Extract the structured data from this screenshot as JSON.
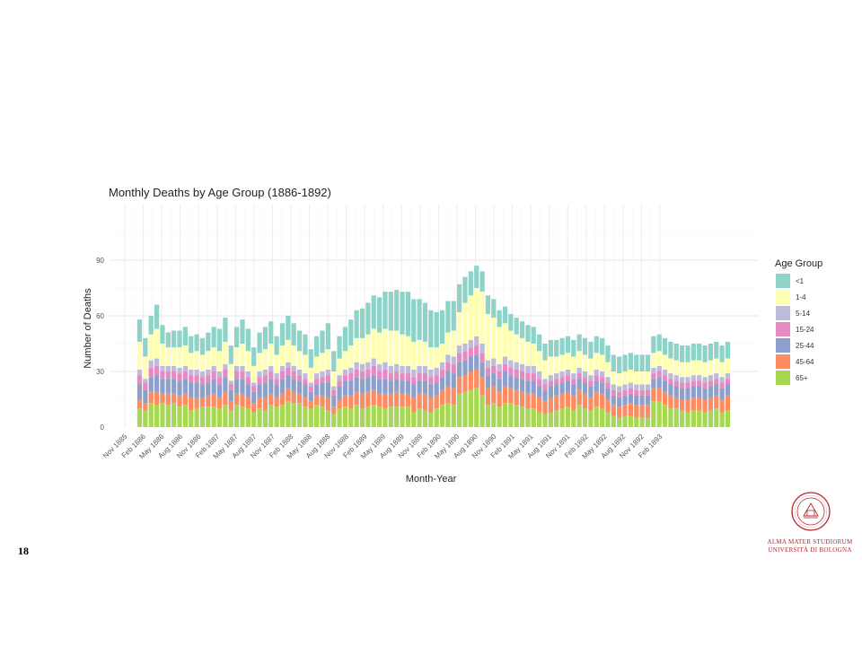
{
  "slide": {
    "number": "18"
  },
  "logo": {
    "line1": "ALMA MATER STUDIORUM",
    "line2": "UNIVERSITÀ DI BOLOGNA",
    "seal_text": "ALMA MATER STUDIORUM A.D. 1088",
    "color": "#b5272d"
  },
  "chart_data": {
    "type": "bar",
    "stacked": true,
    "title": "Monthly Deaths by Age Group (1886-1892)",
    "xlabel": "Month-Year",
    "ylabel": "Number of Deaths",
    "ylim": [
      0,
      120
    ],
    "y_ticks": [
      0,
      30,
      60,
      90
    ],
    "x_tick_labels": [
      "Nov 1885",
      "Feb 1886",
      "May 1886",
      "Aug 1886",
      "Nov 1886",
      "Feb 1887",
      "May 1887",
      "Aug 1887",
      "Nov 1887",
      "Feb 1888",
      "May 1888",
      "Aug 1888",
      "Nov 1888",
      "Feb 1889",
      "May 1889",
      "Aug 1889",
      "Nov 1889",
      "Feb 1890",
      "May 1890",
      "Aug 1890",
      "Nov 1890",
      "Feb 1891",
      "May 1891",
      "Aug 1891",
      "Nov 1891",
      "Feb 1892",
      "May 1892",
      "Aug 1892",
      "Nov 1892",
      "Feb 1893"
    ],
    "grid": true,
    "legend_position": "right",
    "legend_title": "Age Group",
    "series": [
      {
        "name": "65+",
        "color": "#a6d854",
        "values": [
          10,
          9,
          13,
          12,
          13,
          12,
          13,
          11,
          12,
          9,
          10,
          11,
          11,
          11,
          10,
          12,
          9,
          12,
          11,
          10,
          8,
          10,
          9,
          12,
          11,
          12,
          14,
          13,
          13,
          11,
          10,
          12,
          11,
          9,
          7,
          10,
          11,
          10,
          12,
          10,
          11,
          12,
          11,
          10,
          11,
          11,
          11,
          11,
          8,
          10,
          9,
          8,
          10,
          12,
          13,
          12,
          18,
          19,
          20,
          21,
          17,
          12,
          13,
          11,
          13,
          13,
          12,
          11,
          10,
          10,
          8,
          7,
          8,
          9,
          10,
          11,
          9,
          12,
          10,
          9,
          11,
          10,
          8,
          6,
          5,
          6,
          6,
          5,
          5,
          5,
          14,
          14,
          12,
          10,
          10,
          9,
          8,
          9,
          9,
          8,
          9,
          10,
          8,
          9
        ]
      },
      {
        "name": "45-64",
        "color": "#fc8d62",
        "values": [
          5,
          4,
          6,
          7,
          5,
          6,
          5,
          6,
          6,
          7,
          6,
          5,
          6,
          7,
          6,
          7,
          5,
          6,
          7,
          6,
          5,
          6,
          7,
          6,
          5,
          6,
          7,
          6,
          5,
          5,
          4,
          5,
          6,
          7,
          4,
          5,
          6,
          7,
          7,
          8,
          8,
          8,
          7,
          8,
          7,
          8,
          7,
          7,
          8,
          8,
          9,
          8,
          7,
          8,
          9,
          9,
          9,
          9,
          10,
          10,
          10,
          9,
          9,
          8,
          9,
          8,
          8,
          8,
          8,
          8,
          8,
          7,
          8,
          8,
          8,
          8,
          8,
          8,
          8,
          7,
          8,
          8,
          7,
          6,
          6,
          6,
          7,
          7,
          7,
          7,
          7,
          7,
          7,
          7,
          6,
          6,
          7,
          7,
          7,
          7,
          7,
          7,
          7,
          8
        ]
      },
      {
        "name": "25-44",
        "color": "#8da0cb",
        "values": [
          8,
          7,
          8,
          9,
          8,
          8,
          8,
          8,
          8,
          8,
          8,
          7,
          7,
          8,
          7,
          8,
          6,
          8,
          8,
          7,
          6,
          7,
          8,
          8,
          7,
          8,
          7,
          7,
          7,
          7,
          5,
          6,
          7,
          8,
          6,
          7,
          8,
          8,
          8,
          8,
          8,
          8,
          8,
          8,
          7,
          7,
          7,
          7,
          7,
          7,
          7,
          7,
          7,
          7,
          8,
          8,
          8,
          8,
          8,
          8,
          8,
          7,
          7,
          7,
          8,
          7,
          7,
          7,
          7,
          7,
          6,
          6,
          6,
          6,
          6,
          6,
          6,
          6,
          6,
          6,
          6,
          6,
          6,
          5,
          5,
          5,
          5,
          5,
          5,
          5,
          5,
          6,
          6,
          6,
          6,
          6,
          6,
          6,
          6,
          6,
          6,
          6,
          6,
          6
        ]
      },
      {
        "name": "15-24",
        "color": "#e78ac3",
        "values": [
          5,
          4,
          5,
          5,
          4,
          4,
          4,
          4,
          4,
          4,
          4,
          4,
          4,
          4,
          4,
          4,
          3,
          4,
          4,
          4,
          3,
          4,
          4,
          4,
          3,
          4,
          4,
          4,
          3,
          3,
          3,
          3,
          3,
          4,
          3,
          3,
          3,
          4,
          4,
          4,
          4,
          5,
          4,
          5,
          4,
          4,
          4,
          4,
          4,
          4,
          4,
          4,
          4,
          4,
          5,
          5,
          5,
          5,
          5,
          5,
          5,
          4,
          4,
          4,
          4,
          4,
          4,
          4,
          4,
          4,
          4,
          3,
          3,
          3,
          3,
          3,
          3,
          3,
          3,
          3,
          3,
          3,
          3,
          3,
          3,
          3,
          3,
          3,
          3,
          3,
          3,
          3,
          3,
          3,
          3,
          3,
          3,
          3,
          3,
          3,
          3,
          3,
          3,
          3
        ]
      },
      {
        "name": "5-14",
        "color": "#bebada",
        "values": [
          3,
          2,
          4,
          4,
          3,
          3,
          3,
          3,
          3,
          3,
          3,
          3,
          3,
          3,
          3,
          3,
          2,
          3,
          3,
          3,
          2,
          3,
          3,
          3,
          3,
          3,
          3,
          3,
          3,
          3,
          2,
          3,
          3,
          3,
          2,
          3,
          3,
          3,
          4,
          4,
          4,
          4,
          4,
          4,
          4,
          4,
          4,
          4,
          4,
          4,
          4,
          4,
          4,
          4,
          4,
          4,
          4,
          4,
          4,
          5,
          5,
          4,
          4,
          4,
          4,
          4,
          4,
          4,
          4,
          4,
          4,
          3,
          3,
          3,
          3,
          3,
          3,
          3,
          3,
          3,
          3,
          3,
          3,
          3,
          3,
          3,
          3,
          3,
          3,
          3,
          3,
          3,
          3,
          3,
          3,
          3,
          3,
          3,
          3,
          3,
          3,
          3,
          3,
          3
        ]
      },
      {
        "name": "1-4",
        "color": "#ffffb3",
        "values": [
          15,
          12,
          14,
          16,
          12,
          10,
          10,
          11,
          11,
          9,
          10,
          9,
          10,
          10,
          11,
          12,
          9,
          10,
          12,
          11,
          9,
          10,
          11,
          12,
          10,
          11,
          12,
          11,
          10,
          10,
          8,
          9,
          10,
          11,
          8,
          9,
          10,
          12,
          13,
          14,
          15,
          16,
          17,
          18,
          19,
          18,
          17,
          16,
          15,
          14,
          13,
          12,
          11,
          10,
          12,
          14,
          18,
          22,
          24,
          26,
          28,
          25,
          22,
          20,
          18,
          16,
          15,
          14,
          13,
          12,
          11,
          10,
          10,
          9,
          9,
          9,
          9,
          9,
          9,
          9,
          9,
          9,
          8,
          7,
          7,
          7,
          7,
          7,
          7,
          7,
          8,
          8,
          8,
          8,
          8,
          8,
          8,
          8,
          8,
          8,
          8,
          8,
          8,
          8
        ]
      },
      {
        "name": "<1",
        "color": "#8dd3c7",
        "values": [
          12,
          10,
          10,
          13,
          10,
          8,
          9,
          9,
          10,
          9,
          9,
          9,
          10,
          11,
          12,
          13,
          10,
          11,
          13,
          12,
          10,
          11,
          12,
          12,
          10,
          12,
          13,
          12,
          11,
          11,
          10,
          11,
          12,
          14,
          11,
          12,
          13,
          14,
          15,
          16,
          17,
          18,
          19,
          20,
          21,
          22,
          23,
          24,
          23,
          22,
          21,
          20,
          19,
          18,
          17,
          16,
          15,
          14,
          13,
          12,
          11,
          10,
          10,
          9,
          9,
          9,
          9,
          9,
          9,
          9,
          9,
          9,
          9,
          9,
          9,
          9,
          9,
          9,
          9,
          9,
          9,
          9,
          9,
          9,
          9,
          9,
          9,
          9,
          9,
          9,
          9,
          9,
          9,
          9,
          9,
          9,
          9,
          9,
          9,
          9,
          9,
          9,
          9,
          9
        ]
      }
    ]
  }
}
